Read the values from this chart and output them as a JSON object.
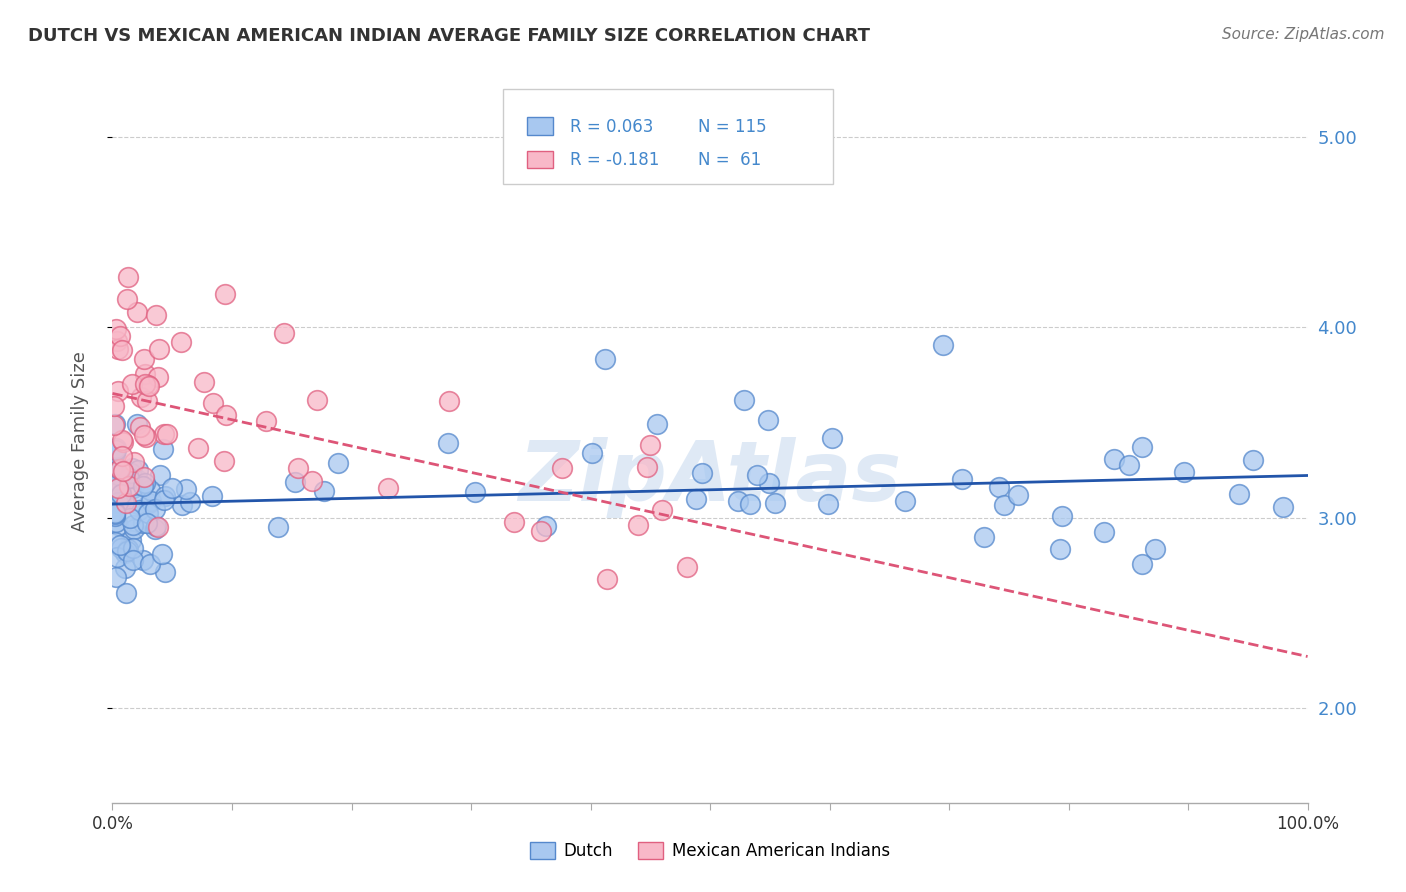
{
  "title": "DUTCH VS MEXICAN AMERICAN INDIAN AVERAGE FAMILY SIZE CORRELATION CHART",
  "source": "Source: ZipAtlas.com",
  "ylabel": "Average Family Size",
  "yticks": [
    2.0,
    3.0,
    4.0,
    5.0
  ],
  "xlim": [
    0.0,
    100.0
  ],
  "ylim": [
    1.5,
    5.3
  ],
  "dutch_color": "#a8c8f0",
  "dutch_edge_color": "#5588cc",
  "mexican_color": "#f8b8c8",
  "mexican_edge_color": "#e06080",
  "dutch_line_color": "#2255aa",
  "mexican_line_color": "#dd5577",
  "title_color": "#333333",
  "source_color": "#777777",
  "watermark": "ZipAtlas",
  "background_color": "#ffffff",
  "grid_color": "#cccccc",
  "tick_color": "#aaaaaa",
  "yaxis_label_color": "#4488cc",
  "dutch_R": 0.063,
  "dutch_N": 115,
  "mexican_R": -0.181,
  "mexican_N": 61,
  "legend_dutch_R_text": "R = 0.063",
  "legend_dutch_N_text": "N = 115",
  "legend_mexican_R_text": "R = -0.181",
  "legend_mexican_N_text": "N =  61",
  "legend_R_color": "#4488cc",
  "legend_N_color": "#4488cc"
}
